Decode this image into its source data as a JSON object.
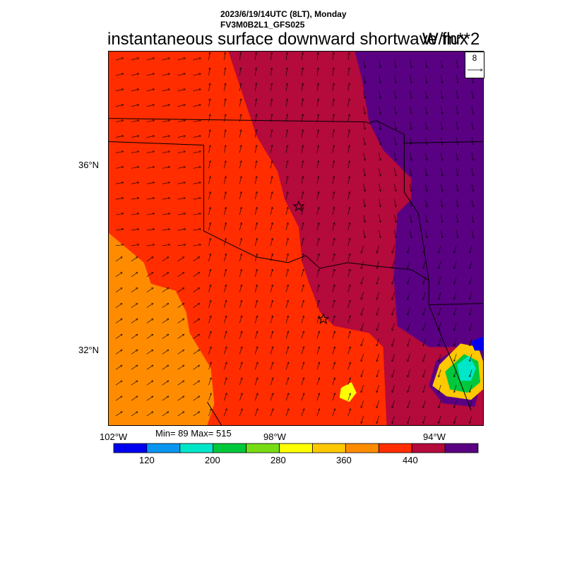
{
  "header": {
    "datetime": "2023/6/19/14UTC (8LT), Monday",
    "model": "FV3M0B2L1_GFS025",
    "title": "instantaneous surface downward shortwave flux",
    "units": "W/m**2"
  },
  "map": {
    "lat_labels": [
      "36°N",
      "32°N"
    ],
    "lon_labels": [
      "102°W",
      "98°W",
      "94°W"
    ],
    "stats": "Min= 89 Max= 515",
    "reference_vector": "8",
    "markers": [
      "star",
      "star"
    ]
  },
  "colorbar": {
    "colors": [
      "#0000f0",
      "#0a96f0",
      "#00e6c8",
      "#00c83c",
      "#78dc14",
      "#ffff00",
      "#ffc800",
      "#ff8c00",
      "#ff2d00",
      "#b40a3c",
      "#5a0082"
    ],
    "labels": [
      "120",
      "200",
      "280",
      "360",
      "440"
    ]
  }
}
